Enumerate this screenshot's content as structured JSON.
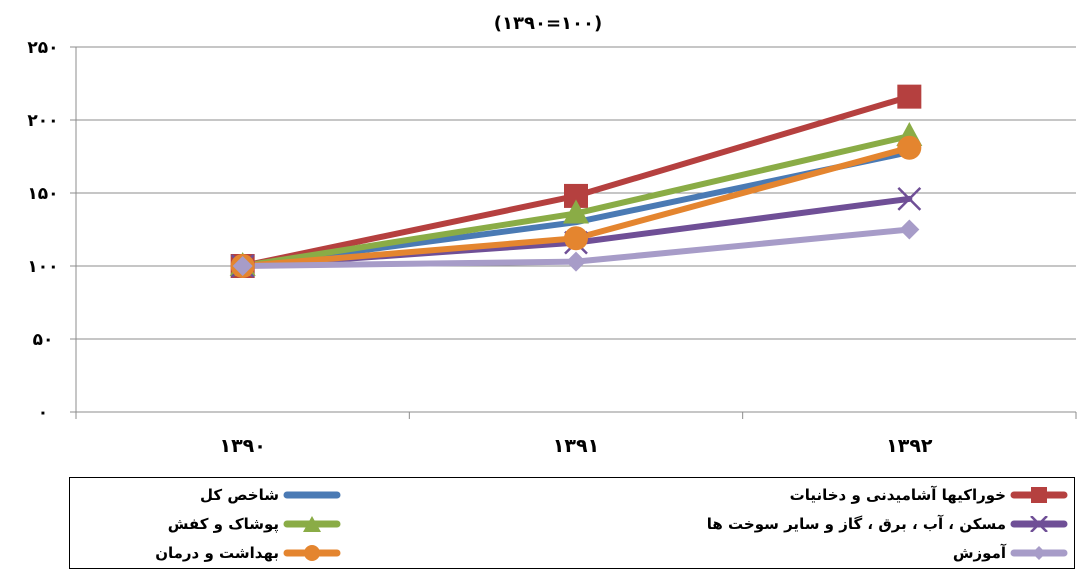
{
  "chart_data": {
    "type": "line",
    "title": "(۱۳۹۰=۱۰۰)",
    "categories": [
      "۱۳۹۰",
      "۱۳۹۱",
      "۱۳۹۲"
    ],
    "ylim": [
      0,
      250
    ],
    "yticks": [
      0,
      50,
      100,
      150,
      200,
      250
    ],
    "ytick_labels": [
      "۰",
      "۵۰",
      "۱۰۰",
      "۱۵۰",
      "۲۰۰",
      "۲۵۰"
    ],
    "grid": true,
    "legend_position": "bottom",
    "series": [
      {
        "name": "شاخص کل",
        "values": [
          100,
          130,
          178
        ],
        "color": "#4a7ab4",
        "marker": "none"
      },
      {
        "name": "خوراکیها آشامیدنی و دخانیات",
        "values": [
          100,
          148,
          216
        ],
        "color": "#b5403f",
        "marker": "square"
      },
      {
        "name": "پوشاک و کفش",
        "values": [
          100,
          136,
          189
        ],
        "color": "#8aac46",
        "marker": "triangle"
      },
      {
        "name": "مسکن ، آب ، برق ، گاز و سایر سوخت ها",
        "values": [
          100,
          116,
          146
        ],
        "color": "#6f4f96",
        "marker": "x"
      },
      {
        "name": "بهداشت و درمان",
        "values": [
          100,
          119,
          181
        ],
        "color": "#e4852f",
        "marker": "circle"
      },
      {
        "name": "آموزش",
        "values": [
          100,
          103,
          125
        ],
        "color": "#a79cc8",
        "marker": "diamond"
      }
    ]
  }
}
